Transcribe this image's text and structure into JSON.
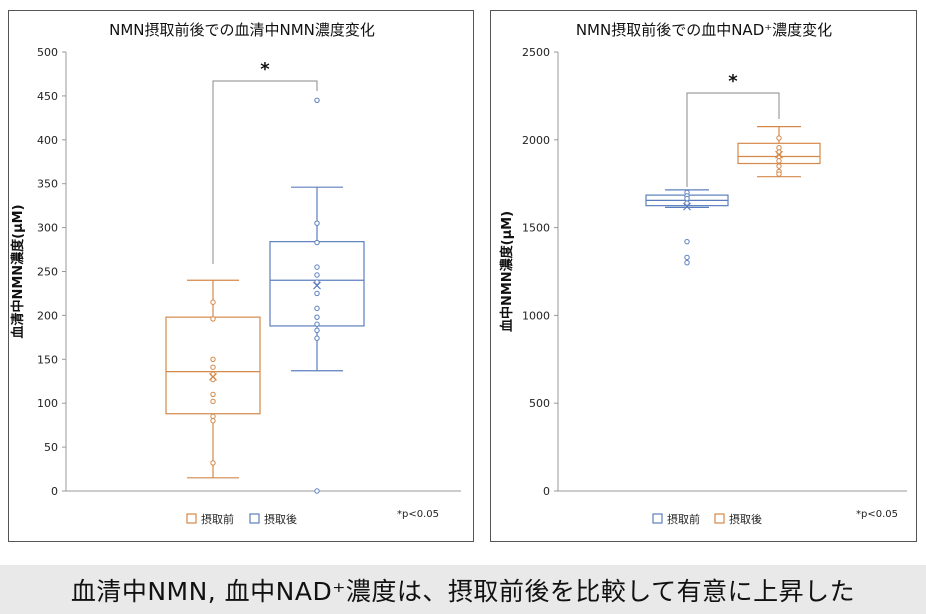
{
  "chart_data": [
    {
      "type": "box",
      "title": "NMN摂取前後での血清中NMN濃度変化",
      "ylabel": "血清中NMN濃度(μM)",
      "ylim": [
        0,
        500
      ],
      "yticks": [
        0,
        50,
        100,
        150,
        200,
        250,
        300,
        350,
        400,
        450,
        500
      ],
      "grid": false,
      "legend_position": "bottom",
      "significance": "*",
      "note": "*p<0.05",
      "series": [
        {
          "name": "摂取前",
          "color": "#d4884a",
          "min": 15,
          "q1": 88,
          "median": 136,
          "q3": 198,
          "max": 240,
          "mean": 130,
          "points": [
            215,
            196,
            150,
            141,
            133,
            127,
            110,
            102,
            85,
            80,
            32
          ]
        },
        {
          "name": "摂取後",
          "color": "#5b7fbe",
          "min": 137,
          "q1": 188,
          "median": 240,
          "q3": 284,
          "max": 346,
          "mean": 234,
          "points": [
            445,
            305,
            283,
            255,
            246,
            238,
            225,
            208,
            198,
            190,
            183,
            174,
            0
          ]
        }
      ]
    },
    {
      "type": "box",
      "title": "NMN摂取前後での血中NAD⁺濃度変化",
      "ylabel": "血中NMN濃度(μM)",
      "ylim": [
        0,
        2500
      ],
      "yticks": [
        0,
        500,
        1000,
        1500,
        2000,
        2500
      ],
      "grid": false,
      "legend_position": "bottom",
      "significance": "*",
      "note": "*p<0.05",
      "series": [
        {
          "name": "摂取前",
          "color": "#5b7fbe",
          "min": 1615,
          "q1": 1625,
          "median": 1655,
          "q3": 1685,
          "max": 1715,
          "mean": 1620,
          "points": [
            1700,
            1680,
            1665,
            1640,
            1420,
            1330,
            1300
          ]
        },
        {
          "name": "摂取後",
          "color": "#d4884a",
          "min": 1790,
          "q1": 1865,
          "median": 1905,
          "q3": 1980,
          "max": 2075,
          "mean": 1915,
          "points": [
            2010,
            1955,
            1930,
            1905,
            1880,
            1850,
            1820,
            1805
          ]
        }
      ]
    }
  ],
  "banner": "血清中NMN, 血中NAD⁺濃度は、摂取前後を比較して有意に上昇した"
}
